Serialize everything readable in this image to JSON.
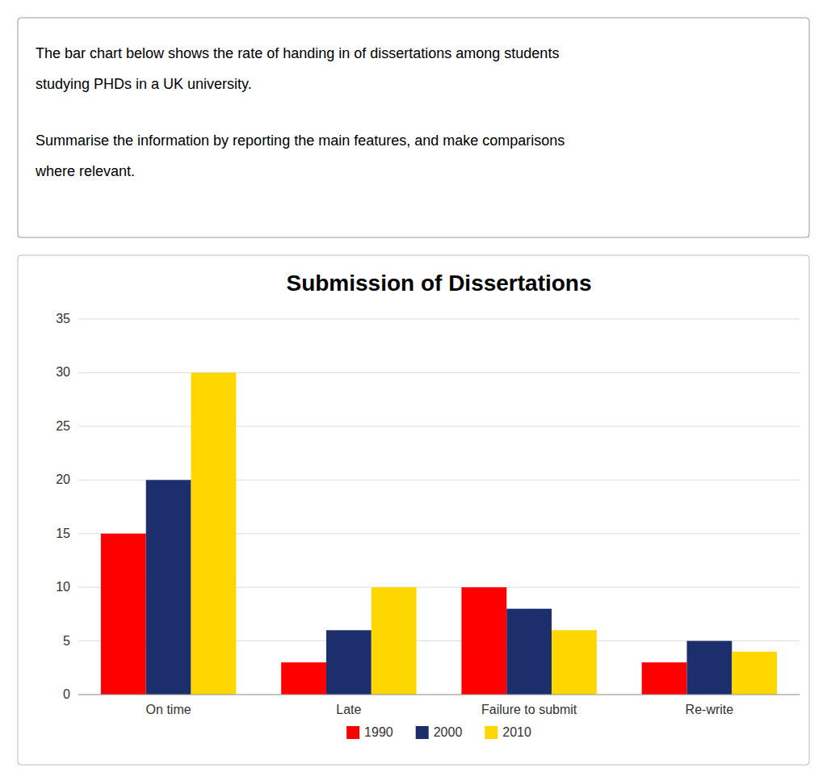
{
  "chart_data": {
    "type": "bar",
    "title": "Submission of Dissertations",
    "annotations": [
      "The bar chart below shows the rate of handing in of dissertations among students",
      "studying PHDs in a UK university.",
      "Summarise the information by reporting the main features, and make comparisons",
      "where relevant."
    ],
    "categories": [
      "On time",
      "Late",
      "Failure to submit",
      "Re-write"
    ],
    "series": [
      {
        "name": "1990",
        "color": "#FF0000",
        "values": [
          15,
          3,
          10,
          3
        ]
      },
      {
        "name": "2000",
        "color": "#1C2E6B",
        "values": [
          20,
          6,
          8,
          5
        ]
      },
      {
        "name": "2010",
        "color": "#FFD700",
        "values": [
          30,
          10,
          6,
          4
        ]
      }
    ],
    "ylim": [
      0,
      35
    ],
    "yticks": [
      0,
      5,
      10,
      15,
      20,
      25,
      30,
      35
    ],
    "grid": true,
    "legend": "bottom"
  }
}
